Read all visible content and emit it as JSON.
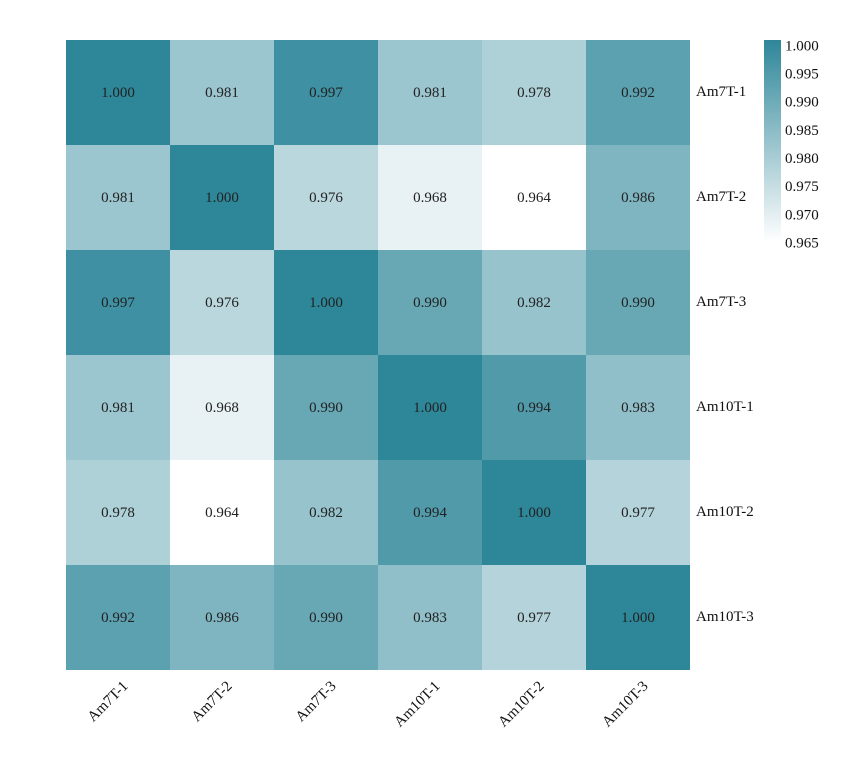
{
  "chart_data": {
    "type": "heatmap",
    "title": "",
    "rows": [
      "Am7T-1",
      "Am7T-2",
      "Am7T-3",
      "Am10T-1",
      "Am10T-2",
      "Am10T-3"
    ],
    "columns": [
      "Am7T-1",
      "Am7T-2",
      "Am7T-3",
      "Am10T-1",
      "Am10T-2",
      "Am10T-3"
    ],
    "values": [
      [
        1.0,
        0.981,
        0.997,
        0.981,
        0.978,
        0.992
      ],
      [
        0.981,
        1.0,
        0.976,
        0.968,
        0.964,
        0.986
      ],
      [
        0.997,
        0.976,
        1.0,
        0.99,
        0.982,
        0.99
      ],
      [
        0.981,
        0.968,
        0.99,
        1.0,
        0.994,
        0.983
      ],
      [
        0.978,
        0.964,
        0.982,
        0.994,
        1.0,
        0.977
      ],
      [
        0.992,
        0.986,
        0.99,
        0.983,
        0.977,
        1.0
      ]
    ],
    "value_labels": [
      [
        "1.000",
        "0.981",
        "0.997",
        "0.981",
        "0.978",
        "0.992"
      ],
      [
        "0.981",
        "1.000",
        "0.976",
        "0.968",
        "0.964",
        "0.986"
      ],
      [
        "0.997",
        "0.976",
        "1.000",
        "0.990",
        "0.982",
        "0.990"
      ],
      [
        "0.981",
        "0.968",
        "0.990",
        "1.000",
        "0.994",
        "0.983"
      ],
      [
        "0.978",
        "0.964",
        "0.982",
        "0.994",
        "1.000",
        "0.977"
      ],
      [
        "0.992",
        "0.986",
        "0.990",
        "0.983",
        "0.977",
        "1.000"
      ]
    ],
    "color_range": [
      0.964,
      1.0
    ],
    "colors": {
      "low": "#ffffff",
      "high": "#2e8699"
    },
    "colorbar": {
      "ticks": [
        "1.000",
        "0.995",
        "0.990",
        "0.985",
        "0.980",
        "0.975",
        "0.970",
        "0.965"
      ],
      "tick_values": [
        1.0,
        0.995,
        0.99,
        0.985,
        0.98,
        0.975,
        0.97,
        0.965
      ],
      "placement": "top-right"
    },
    "row_label_side": "right",
    "column_label_side": "bottom",
    "column_label_rotation": "rotated 45 degrees"
  }
}
